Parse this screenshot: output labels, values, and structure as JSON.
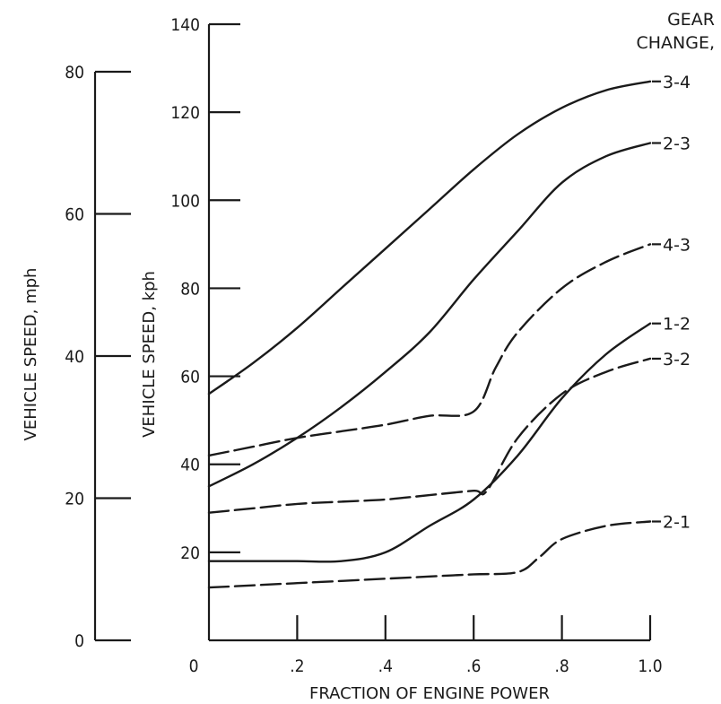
{
  "chart_data": {
    "type": "line",
    "xlabel": "FRACTION OF ENGINE POWER",
    "ylabel": "VEHICLE SPEED, kph",
    "ylabel_secondary": "VEHICLE SPEED, mph",
    "xlim": [
      0,
      1.0
    ],
    "ylim": [
      0,
      140
    ],
    "ylim_secondary": [
      0,
      80
    ],
    "x_ticks": [
      {
        "value": 0,
        "label": "0"
      },
      {
        "value": 0.2,
        "label": ".2"
      },
      {
        "value": 0.4,
        "label": ".4"
      },
      {
        "value": 0.6,
        "label": ".6"
      },
      {
        "value": 0.8,
        "label": ".8"
      },
      {
        "value": 1.0,
        "label": "1.0"
      }
    ],
    "y_ticks": [
      {
        "value": 20,
        "label": "20"
      },
      {
        "value": 40,
        "label": "40"
      },
      {
        "value": 60,
        "label": "60"
      },
      {
        "value": 80,
        "label": "80"
      },
      {
        "value": 100,
        "label": "100"
      },
      {
        "value": 120,
        "label": "120"
      },
      {
        "value": 140,
        "label": "140"
      }
    ],
    "y2_ticks": [
      {
        "value": 0,
        "label": "0"
      },
      {
        "value": 20,
        "label": "20"
      },
      {
        "value": 40,
        "label": "40"
      },
      {
        "value": 60,
        "label": "60"
      },
      {
        "value": 80,
        "label": "80"
      }
    ],
    "legend_title": [
      "GEAR",
      "CHANGE,"
    ],
    "series": [
      {
        "name": "3-4",
        "dash": "solid",
        "x": [
          0,
          0.1,
          0.2,
          0.3,
          0.4,
          0.5,
          0.6,
          0.7,
          0.8,
          0.9,
          1.0
        ],
        "y": [
          56,
          63,
          71,
          80,
          89,
          98,
          107,
          115,
          121,
          125,
          127
        ]
      },
      {
        "name": "2-3",
        "dash": "solid",
        "x": [
          0,
          0.1,
          0.2,
          0.3,
          0.4,
          0.5,
          0.6,
          0.7,
          0.8,
          0.9,
          1.0
        ],
        "y": [
          35,
          40,
          46,
          53,
          61,
          70,
          82,
          93,
          104,
          110,
          113
        ]
      },
      {
        "name": "4-3",
        "dash": "dashed",
        "x": [
          0,
          0.1,
          0.2,
          0.3,
          0.4,
          0.5,
          0.6,
          0.65,
          0.7,
          0.8,
          0.9,
          1.0
        ],
        "y": [
          42,
          44,
          46,
          47.5,
          49,
          51,
          52,
          62,
          70,
          80,
          86,
          90
        ]
      },
      {
        "name": "1-2",
        "dash": "solid",
        "x": [
          0,
          0.1,
          0.2,
          0.3,
          0.4,
          0.5,
          0.6,
          0.7,
          0.8,
          0.9,
          1.0
        ],
        "y": [
          18,
          18,
          18,
          18,
          20,
          26,
          32,
          42,
          55,
          65,
          72
        ]
      },
      {
        "name": "3-2",
        "dash": "dashed",
        "x": [
          0,
          0.1,
          0.2,
          0.3,
          0.4,
          0.5,
          0.6,
          0.63,
          0.7,
          0.8,
          0.9,
          1.0
        ],
        "y": [
          29,
          30,
          31,
          31.5,
          32,
          33,
          34,
          34,
          46,
          56,
          61,
          64
        ]
      },
      {
        "name": "2-1",
        "dash": "dashed",
        "x": [
          0,
          0.1,
          0.2,
          0.3,
          0.4,
          0.5,
          0.6,
          0.7,
          0.75,
          0.8,
          0.9,
          1.0
        ],
        "y": [
          12,
          12.5,
          13,
          13.5,
          14,
          14.5,
          15,
          15.5,
          19,
          23,
          26,
          27
        ]
      }
    ]
  }
}
